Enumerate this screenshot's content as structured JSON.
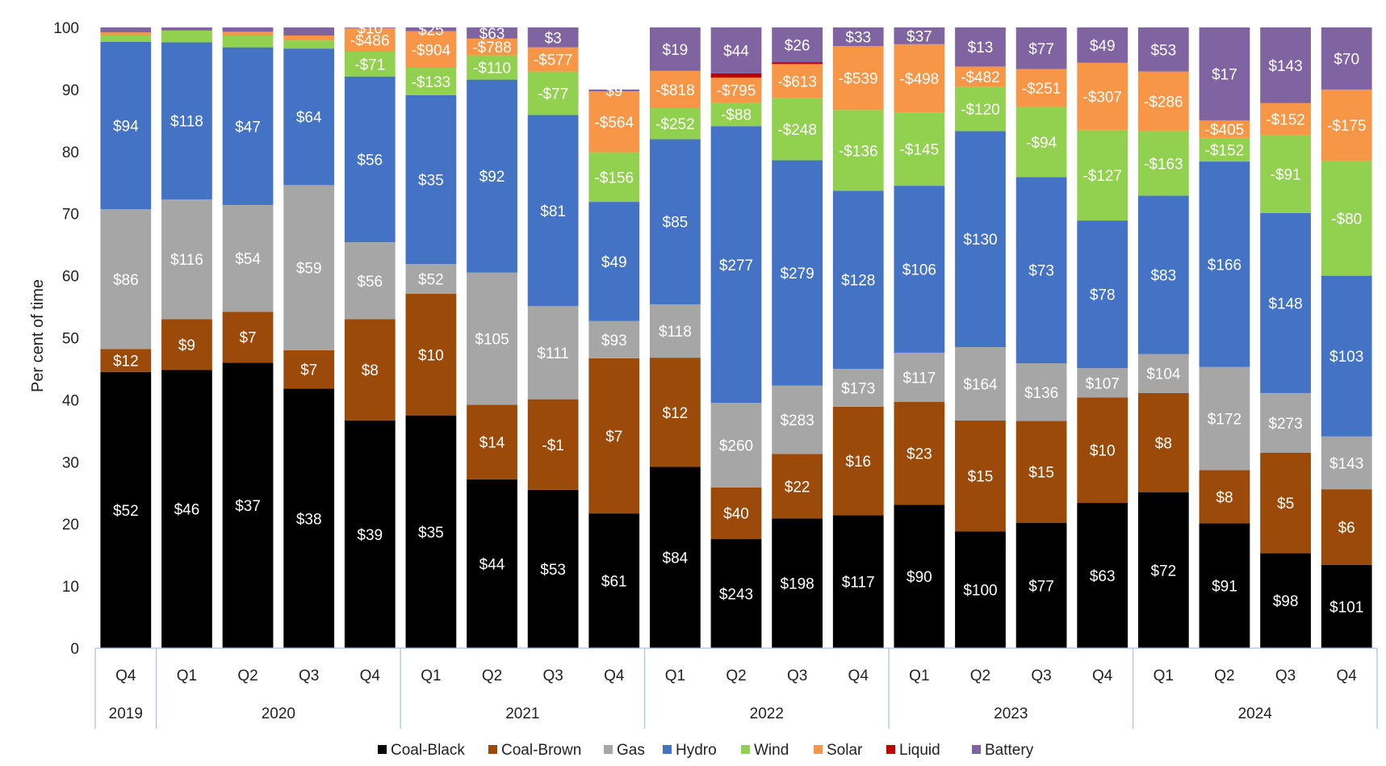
{
  "chart_data": {
    "type": "bar",
    "stacked": true,
    "ylabel": "Per cent of time",
    "ylim": [
      0,
      100
    ],
    "yticks": [
      0,
      10,
      20,
      30,
      40,
      50,
      60,
      70,
      80,
      90,
      100
    ],
    "grid": false,
    "legend_position": "bottom",
    "categories": [
      "Q4",
      "Q1",
      "Q2",
      "Q3",
      "Q4",
      "Q1",
      "Q2",
      "Q3",
      "Q4",
      "Q1",
      "Q2",
      "Q3",
      "Q4",
      "Q1",
      "Q2",
      "Q3",
      "Q4",
      "Q1",
      "Q2",
      "Q3",
      "Q4"
    ],
    "year_groups": [
      {
        "label": "2019",
        "count": 1
      },
      {
        "label": "2020",
        "count": 4
      },
      {
        "label": "2021",
        "count": 4
      },
      {
        "label": "2022",
        "count": 4
      },
      {
        "label": "2023",
        "count": 4
      },
      {
        "label": "2024",
        "count": 4
      }
    ],
    "series": [
      {
        "name": "Coal-Black",
        "color": "#000000",
        "label_color": "#ffffff",
        "values": [
          44.5,
          44.8,
          46.0,
          41.8,
          36.7,
          37.5,
          27.2,
          25.5,
          21.7,
          29.2,
          17.6,
          20.9,
          21.4,
          23.1,
          18.8,
          20.2,
          23.4,
          25.1,
          20.1,
          15.3,
          13.4
        ],
        "labels": [
          "$52",
          "$46",
          "$37",
          "$38",
          "$39",
          "$35",
          "$44",
          "$53",
          "$61",
          "$84",
          "$243",
          "$198",
          "$117",
          "$90",
          "$100",
          "$77",
          "$63",
          "$72",
          "$91",
          "$98",
          "$101"
        ]
      },
      {
        "name": "Coal-Brown",
        "color": "#9C4A0A",
        "label_color": "#ffffff",
        "values": [
          3.7,
          8.2,
          8.2,
          6.2,
          16.3,
          19.6,
          12.0,
          14.6,
          25.0,
          17.6,
          8.3,
          10.4,
          17.5,
          16.6,
          17.9,
          16.4,
          17.0,
          16.0,
          8.6,
          16.2,
          12.2
        ],
        "labels": [
          "$12",
          "$9",
          "$7",
          "$7",
          "$8",
          "$10",
          "$14",
          "-$1",
          "$7",
          "$12",
          "$40",
          "$22",
          "$16",
          "$23",
          "$15",
          "$15",
          "$10",
          "$8",
          "$8",
          "$5",
          "$6"
        ]
      },
      {
        "name": "Gas",
        "color": "#A6A6A6",
        "label_color": "#ffffff",
        "values": [
          22.5,
          19.3,
          17.2,
          26.6,
          12.4,
          4.8,
          21.3,
          15.0,
          6.0,
          8.6,
          13.6,
          11.0,
          6.1,
          7.9,
          11.8,
          9.3,
          4.7,
          6.3,
          16.6,
          9.6,
          8.5
        ],
        "labels": [
          "$86",
          "$116",
          "$54",
          "$59",
          "$56",
          "$52",
          "$105",
          "$111",
          "$93",
          "$118",
          "$260",
          "$283",
          "$173",
          "$117",
          "$164",
          "$136",
          "$107",
          "$104",
          "$172",
          "$273",
          "$143"
        ]
      },
      {
        "name": "Hydro",
        "color": "#4472C4",
        "label_color": "#ffffff",
        "values": [
          27.0,
          25.3,
          25.4,
          22.0,
          26.7,
          27.2,
          31.1,
          30.8,
          19.2,
          26.6,
          44.6,
          36.3,
          28.7,
          26.9,
          34.8,
          30.0,
          23.8,
          25.5,
          33.1,
          29.0,
          25.9
        ],
        "labels": [
          "$94",
          "$118",
          "$47",
          "$64",
          "$56",
          "$35",
          "$92",
          "$81",
          "$49",
          "$85",
          "$277",
          "$279",
          "$128",
          "$106",
          "$130",
          "$73",
          "$78",
          "$83",
          "$166",
          "$148",
          "$103"
        ]
      },
      {
        "name": "Wind",
        "color": "#92D050",
        "label_color": "#ffffff",
        "values": [
          1.0,
          1.9,
          1.9,
          1.3,
          4.0,
          4.4,
          3.9,
          7.0,
          8.0,
          5.0,
          3.8,
          10.0,
          13.0,
          11.8,
          7.1,
          11.3,
          14.6,
          10.4,
          3.8,
          12.6,
          18.5
        ],
        "labels": [
          "",
          "",
          "",
          "",
          "-$71",
          "-$133",
          "-$110",
          "-$77",
          "-$156",
          "-$252",
          "-$88",
          "-$248",
          "-$136",
          "-$145",
          "-$120",
          "-$94",
          "-$127",
          "-$163",
          "-$152",
          "-$91",
          "-$80"
        ]
      },
      {
        "name": "Solar",
        "color": "#F79646",
        "label_color": "#ffffff",
        "values": [
          0.5,
          0.0,
          0.6,
          0.8,
          3.8,
          5.9,
          2.7,
          3.9,
          9.8,
          6.0,
          4.0,
          5.5,
          10.3,
          11.0,
          3.3,
          6.1,
          10.8,
          9.6,
          2.8,
          5.1,
          11.5
        ],
        "labels": [
          "",
          "",
          "",
          "",
          "-$486",
          "-$904",
          "-$788",
          "-$577",
          "-$564",
          "-$818",
          "-$795",
          "-$613",
          "-$539",
          "-$498",
          "-$482",
          "-$251",
          "-$307",
          "-$286",
          "-$405",
          "-$152",
          "-$175"
        ]
      },
      {
        "name": "Liquid",
        "color": "#C00000",
        "label_color": "#ffffff",
        "values": [
          0,
          0,
          0,
          0,
          0,
          0,
          0,
          0,
          0,
          0,
          0.7,
          0.3,
          0,
          0,
          0,
          0,
          0,
          0,
          0,
          0,
          0
        ],
        "labels": [
          "",
          "",
          "",
          "",
          "",
          "",
          "",
          "",
          "",
          "",
          "",
          "",
          "",
          "",
          "",
          "",
          "",
          "",
          "",
          "",
          ""
        ]
      },
      {
        "name": "Battery",
        "color": "#8064A2",
        "label_color": "#ffffff",
        "values": [
          0.8,
          0.5,
          0.7,
          1.3,
          0.1,
          0.6,
          1.8,
          3.2,
          0.3,
          7.0,
          7.4,
          5.6,
          3.0,
          2.7,
          6.3,
          6.7,
          5.7,
          7.1,
          15.0,
          12.2,
          10.0
        ],
        "labels": [
          "",
          "",
          "",
          "",
          "$10",
          "$25",
          "$63",
          "$3",
          "$9",
          "$19",
          "$44",
          "$26",
          "$33",
          "$37",
          "$13",
          "$77",
          "$49",
          "$53",
          "$17",
          "$143",
          "$70"
        ]
      }
    ]
  }
}
